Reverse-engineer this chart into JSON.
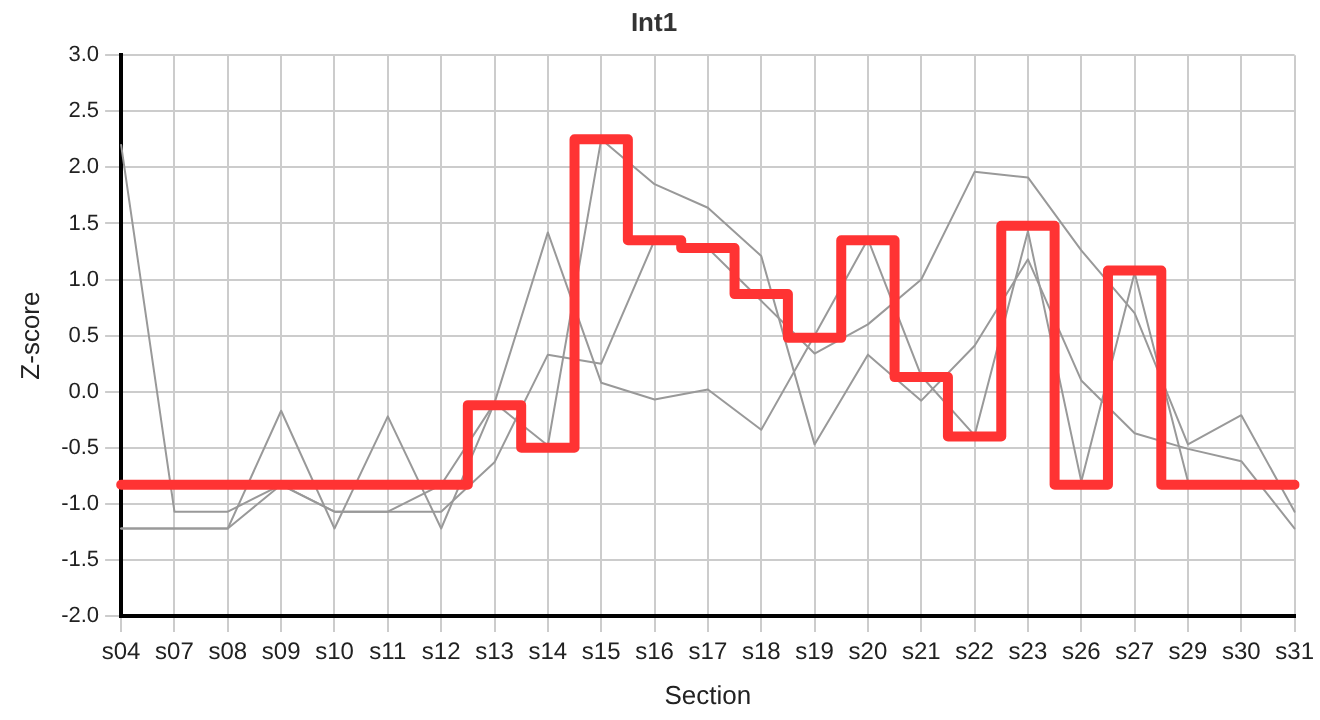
{
  "chart_data": {
    "type": "line",
    "title": "Int1",
    "xlabel": "Section",
    "ylabel": "Z-score",
    "categories": [
      "s04",
      "s07",
      "s08",
      "s09",
      "s10",
      "s11",
      "s12",
      "s13",
      "s14",
      "s15",
      "s16",
      "s17",
      "s18",
      "s19",
      "s20",
      "s21",
      "s22",
      "s23",
      "s26",
      "s27",
      "s29",
      "s30",
      "s31"
    ],
    "series": [
      {
        "color": "#999999",
        "values": [
          2.2,
          -1.07,
          -1.07,
          -0.83,
          -1.07,
          -1.07,
          -1.07,
          -0.63,
          0.33,
          0.25,
          1.35,
          1.28,
          0.81,
          0.34,
          0.6,
          1.0,
          1.96,
          1.91,
          1.26,
          0.7,
          -0.47,
          -0.21,
          -1.07
        ]
      },
      {
        "color": "#999999",
        "values": [
          -1.22,
          -1.22,
          -1.22,
          -0.17,
          -1.22,
          -0.22,
          -1.22,
          -0.1,
          1.42,
          0.08,
          -0.07,
          0.02,
          -0.34,
          0.5,
          1.36,
          0.14,
          -0.39,
          1.43,
          -0.8,
          1.06,
          -0.8,
          -0.83,
          -0.83
        ]
      },
      {
        "color": "#999999",
        "values": [
          -1.22,
          -1.22,
          -1.22,
          -0.83,
          -1.07,
          -1.07,
          -0.83,
          -0.1,
          -0.48,
          2.25,
          1.85,
          1.64,
          1.21,
          -0.47,
          0.33,
          -0.08,
          0.41,
          1.18,
          0.1,
          -0.37,
          -0.51,
          -0.62,
          -1.22
        ]
      },
      {
        "type": "step",
        "color": "#ff3333",
        "values": [
          -0.83,
          -0.83,
          -0.83,
          -0.83,
          -0.83,
          -0.83,
          -0.83,
          -0.12,
          -0.5,
          2.25,
          1.35,
          1.28,
          0.87,
          0.48,
          1.35,
          0.13,
          -0.4,
          1.48,
          -0.83,
          1.08,
          -0.83,
          -0.83,
          -0.83
        ]
      }
    ],
    "ylim": [
      -2,
      3
    ],
    "yticks": [
      {
        "value": -2,
        "label": "-2.0"
      },
      {
        "value": -1.5,
        "label": "-1.5"
      },
      {
        "value": -1,
        "label": "-1.0"
      },
      {
        "value": -0.5,
        "label": "-0.5"
      },
      {
        "value": 0,
        "label": "0.0"
      },
      {
        "value": 0.5,
        "label": "0.5"
      },
      {
        "value": 1,
        "label": "1.0"
      },
      {
        "value": 1.5,
        "label": "1.5"
      },
      {
        "value": 2,
        "label": "2.0"
      },
      {
        "value": 2.5,
        "label": "2.5"
      },
      {
        "value": 3,
        "label": "3.0"
      }
    ],
    "grid": true,
    "legend": false,
    "marker": "none"
  }
}
